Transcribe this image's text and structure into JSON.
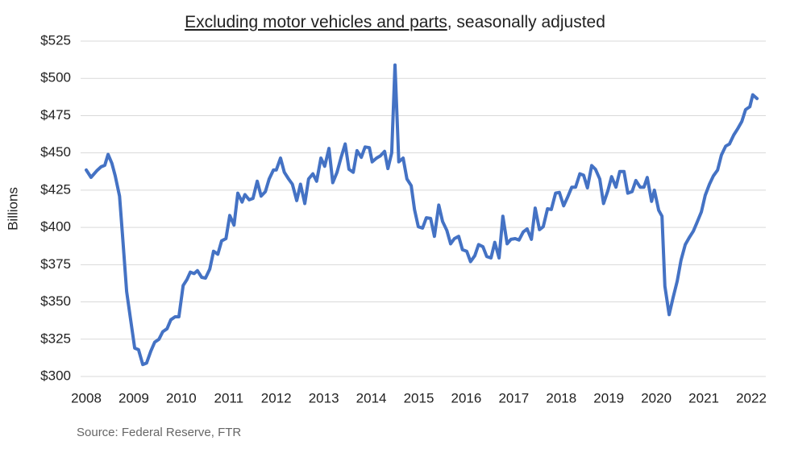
{
  "chart_data": {
    "type": "line",
    "title_parts": [
      "Excluding motor vehicles and parts",
      ", seasonally adjusted"
    ],
    "y_label": "Billions",
    "source": "Source: Federal Reserve, FTR",
    "xlim": [
      2008,
      2022.3
    ],
    "xticks": [
      2008,
      2009,
      2010,
      2011,
      2012,
      2013,
      2014,
      2015,
      2016,
      2017,
      2018,
      2019,
      2020,
      2021,
      2022
    ],
    "ylim": [
      300,
      525
    ],
    "yticks": [
      {
        "value": 300,
        "label": "$300"
      },
      {
        "value": 325,
        "label": "$325"
      },
      {
        "value": 350,
        "label": "$350"
      },
      {
        "value": 375,
        "label": "$375"
      },
      {
        "value": 400,
        "label": "$400"
      },
      {
        "value": 425,
        "label": "$425"
      },
      {
        "value": 450,
        "label": "$450"
      },
      {
        "value": 475,
        "label": "$475"
      },
      {
        "value": 500,
        "label": "$500"
      },
      {
        "value": 525,
        "label": "$525"
      }
    ],
    "grid": true,
    "series": [
      {
        "color": "#4472c4",
        "x": [
          2008.0,
          2008.1,
          2008.22,
          2008.31,
          2008.39,
          2008.46,
          2008.54,
          2008.61,
          2008.7,
          2008.76,
          2008.85,
          2008.93,
          2009.02,
          2009.1,
          2009.19,
          2009.27,
          2009.36,
          2009.44,
          2009.53,
          2009.61,
          2009.7,
          2009.78,
          2009.87,
          2009.95,
          2010.04,
          2010.12,
          2010.19,
          2010.27,
          2010.34,
          2010.43,
          2010.51,
          2010.6,
          2010.68,
          2010.77,
          2010.85,
          2010.94,
          2011.02,
          2011.11,
          2011.19,
          2011.28,
          2011.34,
          2011.43,
          2011.51,
          2011.6,
          2011.68,
          2011.77,
          2011.85,
          2011.94,
          2012.0,
          2012.09,
          2012.17,
          2012.26,
          2012.34,
          2012.43,
          2012.51,
          2012.6,
          2012.68,
          2012.77,
          2012.85,
          2012.94,
          2013.02,
          2013.11,
          2013.19,
          2013.28,
          2013.36,
          2013.45,
          2013.53,
          2013.62,
          2013.7,
          2013.79,
          2013.87,
          2013.96,
          2014.02,
          2014.11,
          2014.19,
          2014.28,
          2014.35,
          2014.43,
          2014.5,
          2014.58,
          2014.67,
          2014.75,
          2014.84,
          2014.91,
          2014.99,
          2015.08,
          2015.16,
          2015.25,
          2015.33,
          2015.42,
          2015.5,
          2015.59,
          2015.67,
          2015.75,
          2015.84,
          2015.92,
          2016.01,
          2016.09,
          2016.18,
          2016.26,
          2016.35,
          2016.43,
          2016.52,
          2016.6,
          2016.69,
          2016.77,
          2016.86,
          2016.94,
          2017.03,
          2017.11,
          2017.2,
          2017.28,
          2017.37,
          2017.45,
          2017.54,
          2017.62,
          2017.71,
          2017.79,
          2017.88,
          2017.96,
          2018.05,
          2018.13,
          2018.22,
          2018.3,
          2018.39,
          2018.47,
          2018.55,
          2018.64,
          2018.72,
          2018.81,
          2018.89,
          2018.98,
          2019.06,
          2019.15,
          2019.23,
          2019.32,
          2019.4,
          2019.49,
          2019.57,
          2019.66,
          2019.74,
          2019.81,
          2019.9,
          2019.96,
          2020.05,
          2020.12,
          2020.18,
          2020.27,
          2020.35,
          2020.44,
          2020.52,
          2020.61,
          2020.69,
          2020.78,
          2020.86,
          2020.95,
          2021.03,
          2021.12,
          2021.2,
          2021.29,
          2021.37,
          2021.46,
          2021.54,
          2021.63,
          2021.71,
          2021.8,
          2021.88,
          2021.97,
          2022.03,
          2022.12
        ],
        "values": [
          438.5,
          433.6,
          438,
          440.6,
          441.7,
          449,
          443,
          434.7,
          421,
          396,
          357,
          339,
          319,
          318,
          308,
          309,
          317,
          323,
          325,
          330,
          332,
          338,
          340,
          340,
          361,
          365,
          370,
          369,
          371,
          366.5,
          366,
          372,
          384,
          382,
          391,
          392.5,
          408,
          401.5,
          423,
          417,
          422,
          418.5,
          419.5,
          431,
          421,
          424,
          432.5,
          438.5,
          438.5,
          446.5,
          437,
          432.5,
          429,
          418,
          429,
          416,
          432.5,
          436,
          431,
          446.5,
          441,
          453,
          430,
          437,
          446.5,
          456,
          439,
          437,
          451.5,
          447,
          454,
          453.5,
          444,
          446.5,
          448,
          451,
          439.5,
          450,
          509,
          444,
          446.5,
          432.5,
          428,
          412,
          400.5,
          399.5,
          406.5,
          406,
          394,
          415,
          404,
          398,
          389,
          392.5,
          394,
          385,
          384,
          377,
          381,
          388.5,
          387,
          380.5,
          379.5,
          390,
          379.5,
          407.5,
          389,
          392,
          392.5,
          391.5,
          397,
          399,
          392,
          413,
          398.5,
          400.5,
          412.5,
          412,
          423,
          423.5,
          414.5,
          420,
          427,
          427,
          436,
          435,
          426.5,
          441.5,
          439,
          432.5,
          416,
          424.5,
          434,
          427,
          437.5,
          437.5,
          423,
          424,
          431.5,
          427,
          427,
          433.5,
          417.5,
          425,
          411.5,
          407.5,
          360.5,
          341.5,
          352.5,
          364,
          378,
          388.5,
          393,
          397.5,
          403.5,
          410.5,
          421.5,
          429,
          434.5,
          438.5,
          448.5,
          454.5,
          456,
          462,
          466,
          471,
          479,
          481,
          489,
          486.5
        ]
      }
    ]
  }
}
